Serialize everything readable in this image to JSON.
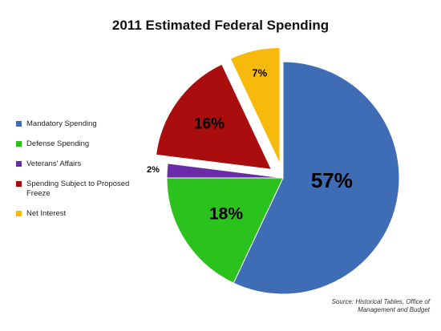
{
  "chart_data": {
    "type": "pie",
    "title": "2011 Estimated Federal Spending",
    "slices": [
      {
        "label": "Mandatory Spending",
        "value": 57,
        "display": "57%",
        "color": "#3F6DB5",
        "exploded": false
      },
      {
        "label": "Defense Spending",
        "value": 18,
        "display": "18%",
        "color": "#2BC21E",
        "exploded": false
      },
      {
        "label": "Veterans' Affairs",
        "value": 2,
        "display": "2%",
        "color": "#6A2BA8",
        "exploded": false
      },
      {
        "label": "Spending Subject to Proposed Freeze",
        "value": 16,
        "display": "16%",
        "color": "#AA0D0D",
        "exploded": true
      },
      {
        "label": "Net Interest",
        "value": 7,
        "display": "7%",
        "color": "#F7B90C",
        "exploded": true
      }
    ],
    "legend_position": "left",
    "source_note": "Source: Historical Tables, Office of Management and Budget"
  }
}
